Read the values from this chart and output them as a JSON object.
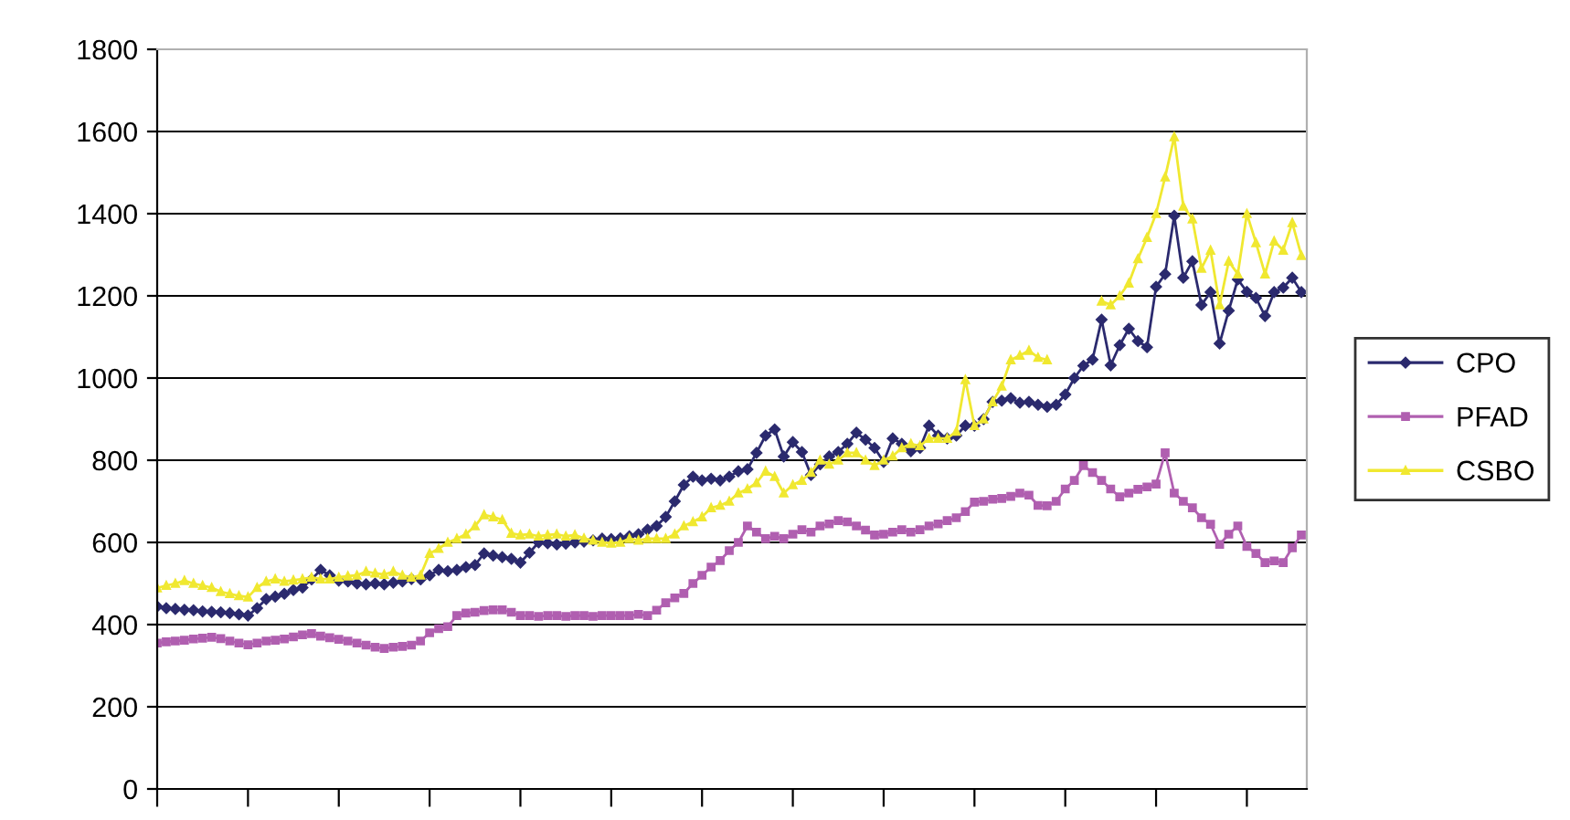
{
  "chart_data": {
    "type": "line",
    "categories": [
      null,
      null,
      null,
      null,
      null,
      null,
      null,
      null,
      null,
      null,
      null,
      null,
      null,
      null,
      null,
      null,
      null,
      null,
      null,
      null,
      null,
      null,
      null,
      null,
      null,
      null,
      null,
      null,
      null,
      null,
      null,
      null,
      null,
      null,
      null,
      null,
      null,
      null,
      null,
      null,
      null,
      null,
      null,
      null,
      null,
      null,
      null,
      null,
      null,
      null,
      null,
      null,
      null,
      null,
      null,
      null,
      null,
      null,
      null,
      null,
      null,
      null,
      null,
      null,
      null,
      null,
      null,
      null,
      null,
      null,
      null,
      null,
      null,
      null,
      null,
      null,
      null,
      null,
      null,
      null,
      null,
      null,
      null,
      null,
      null,
      null,
      null,
      null,
      null,
      null,
      null,
      null,
      null,
      null,
      null,
      null,
      null,
      null,
      null,
      null,
      null,
      null,
      null,
      null,
      null,
      null,
      null,
      null,
      null,
      null,
      null,
      null,
      null,
      null,
      null,
      null,
      null,
      null,
      null,
      null,
      null,
      null,
      null,
      null,
      null,
      null,
      null
    ],
    "series": [
      {
        "name": "CPO",
        "color": "#2b2a6e",
        "marker": "diamond",
        "values": [
          444,
          440,
          438,
          436,
          435,
          432,
          431,
          430,
          428,
          425,
          422,
          440,
          462,
          468,
          475,
          484,
          490,
          510,
          533,
          520,
          507,
          505,
          500,
          498,
          500,
          498,
          502,
          505,
          511,
          510,
          520,
          533,
          530,
          533,
          540,
          545,
          573,
          568,
          564,
          560,
          551,
          575,
          600,
          598,
          595,
          597,
          600,
          602,
          605,
          609,
          608,
          610,
          615,
          620,
          631,
          640,
          662,
          700,
          740,
          760,
          751,
          755,
          751,
          760,
          773,
          778,
          818,
          860,
          875,
          809,
          844,
          820,
          764,
          790,
          809,
          820,
          840,
          867,
          850,
          830,
          796,
          853,
          840,
          822,
          830,
          884,
          860,
          853,
          860,
          884,
          884,
          900,
          942,
          945,
          951,
          940,
          942,
          935,
          930,
          935,
          960,
          1000,
          1030,
          1045,
          1142,
          1031,
          1080,
          1120,
          1090,
          1075,
          1222,
          1253,
          1395,
          1244,
          1284,
          1178,
          1209,
          1084,
          1164,
          1240,
          1210,
          1195,
          1151,
          1209,
          1220,
          1244,
          1209
        ]
      },
      {
        "name": "PFAD",
        "color": "#b05fb0",
        "marker": "square",
        "values": [
          355,
          358,
          360,
          362,
          365,
          367,
          369,
          366,
          360,
          355,
          351,
          355,
          360,
          362,
          365,
          370,
          375,
          378,
          372,
          368,
          364,
          360,
          355,
          350,
          345,
          342,
          345,
          347,
          350,
          360,
          380,
          390,
          395,
          422,
          428,
          430,
          434,
          436,
          436,
          430,
          422,
          422,
          420,
          422,
          422,
          420,
          422,
          422,
          420,
          422,
          422,
          422,
          422,
          425,
          422,
          435,
          453,
          465,
          476,
          500,
          520,
          540,
          556,
          580,
          600,
          640,
          625,
          609,
          615,
          609,
          620,
          631,
          625,
          640,
          645,
          653,
          650,
          640,
          630,
          618,
          620,
          625,
          631,
          625,
          631,
          640,
          645,
          653,
          660,
          675,
          698,
          700,
          705,
          707,
          712,
          720,
          715,
          690,
          689,
          700,
          730,
          751,
          787,
          770,
          751,
          730,
          711,
          720,
          729,
          735,
          742,
          818,
          720,
          700,
          684,
          660,
          644,
          595,
          620,
          640,
          590,
          573,
          551,
          555,
          551,
          587,
          618
        ]
      },
      {
        "name": "CSBO",
        "color": "#f0e830",
        "marker": "triangle",
        "values": [
          489,
          495,
          500,
          507,
          500,
          495,
          490,
          480,
          475,
          470,
          467,
          490,
          505,
          511,
          505,
          508,
          511,
          515,
          511,
          511,
          515,
          518,
          520,
          529,
          525,
          522,
          529,
          520,
          515,
          520,
          573,
          585,
          600,
          609,
          620,
          640,
          667,
          662,
          655,
          622,
          618,
          620,
          615,
          618,
          620,
          615,
          618,
          610,
          605,
          600,
          598,
          600,
          609,
          605,
          609,
          609,
          609,
          620,
          640,
          650,
          662,
          684,
          690,
          700,
          720,
          730,
          745,
          773,
          760,
          720,
          740,
          751,
          770,
          800,
          790,
          800,
          818,
          818,
          800,
          787,
          800,
          810,
          830,
          840,
          835,
          853,
          853,
          853,
          870,
          996,
          884,
          900,
          942,
          980,
          1044,
          1055,
          1067,
          1050,
          1044,
          null,
          null,
          null,
          null,
          null,
          1187,
          1178,
          1200,
          1231,
          1290,
          1342,
          1400,
          1489,
          1587,
          1418,
          1387,
          1267,
          1311,
          1178,
          1284,
          1253,
          1400,
          1329,
          1253,
          1333,
          1311,
          1378,
          1298
        ]
      }
    ],
    "ylim": [
      0,
      1800
    ],
    "yticks": [
      0,
      200,
      400,
      600,
      800,
      1000,
      1200,
      1400,
      1600,
      1800
    ],
    "grid": "y",
    "legend": "right",
    "line_style": "solid"
  }
}
